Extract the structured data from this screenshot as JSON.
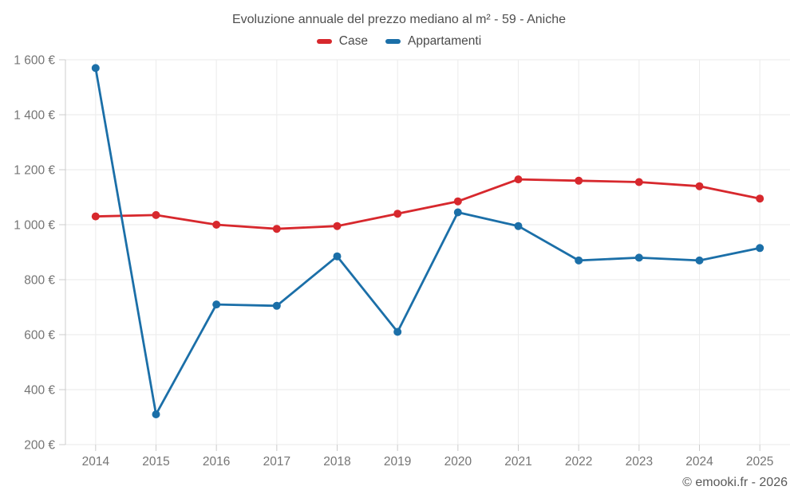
{
  "chart_data": {
    "type": "line",
    "title": "Evoluzione annuale del prezzo mediano al m² - 59 - Aniche",
    "categories": [
      "2014",
      "2015",
      "2016",
      "2017",
      "2018",
      "2019",
      "2020",
      "2021",
      "2022",
      "2023",
      "2024",
      "2025"
    ],
    "series": [
      {
        "name": "Case",
        "color": "#d7282d",
        "values": [
          1030,
          1035,
          1000,
          985,
          995,
          1040,
          1085,
          1165,
          1160,
          1155,
          1140,
          1095
        ]
      },
      {
        "name": "Appartamenti",
        "color": "#1b6fa8",
        "values": [
          1570,
          310,
          710,
          705,
          885,
          610,
          1045,
          995,
          870,
          880,
          870,
          915
        ]
      }
    ],
    "ylim": [
      200,
      1600
    ],
    "yticks": {
      "values": [
        200,
        400,
        600,
        800,
        1000,
        1200,
        1400,
        1600
      ],
      "labels": [
        "200 €",
        "400 €",
        "600 €",
        "800 €",
        "1 000 €",
        "1 200 €",
        "1 400 €",
        "1 600 €"
      ]
    },
    "grid": "on",
    "legend_position": "top",
    "currency": "€"
  },
  "footer": {
    "copyright": "© emooki.fr - 2026"
  }
}
